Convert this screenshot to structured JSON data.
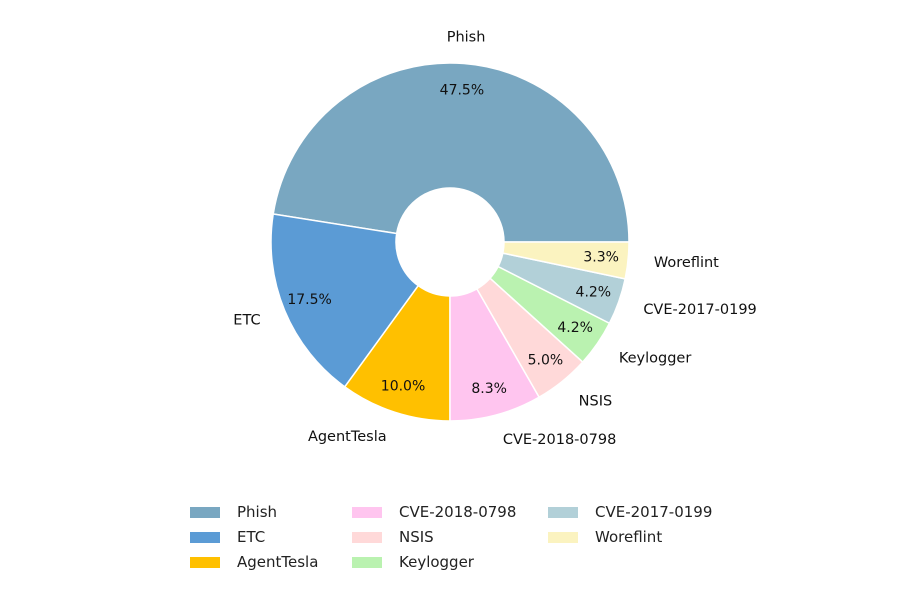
{
  "chart_data": {
    "type": "pie",
    "donut": true,
    "categories": [
      "Phish",
      "ETC",
      "AgentTesla",
      "CVE-2018-0798",
      "NSIS",
      "Keylogger",
      "CVE-2017-0199",
      "Woreflint"
    ],
    "values": [
      47.5,
      17.5,
      10.0,
      8.3,
      5.0,
      4.2,
      4.2,
      3.3
    ],
    "pct_labels": [
      "47.5%",
      "17.5%",
      "10.0%",
      "8.3%",
      "5.0%",
      "4.2%",
      "4.2%",
      "3.3%"
    ],
    "colors": [
      "#79a7c1",
      "#5b9bd5",
      "#ffc000",
      "#ffc5ef",
      "#ffd9d9",
      "#baf2b0",
      "#b2d0d8",
      "#fbf3c0"
    ],
    "start_angle": "0 degrees (3 o'clock), counter-clockwise",
    "legend": {
      "placement": "bottom-center",
      "columns": [
        [
          "Phish",
          "ETC",
          "AgentTesla"
        ],
        [
          "CVE-2018-0798",
          "NSIS",
          "Keylogger"
        ],
        [
          "CVE-2017-0199",
          "Woreflint"
        ]
      ]
    }
  }
}
